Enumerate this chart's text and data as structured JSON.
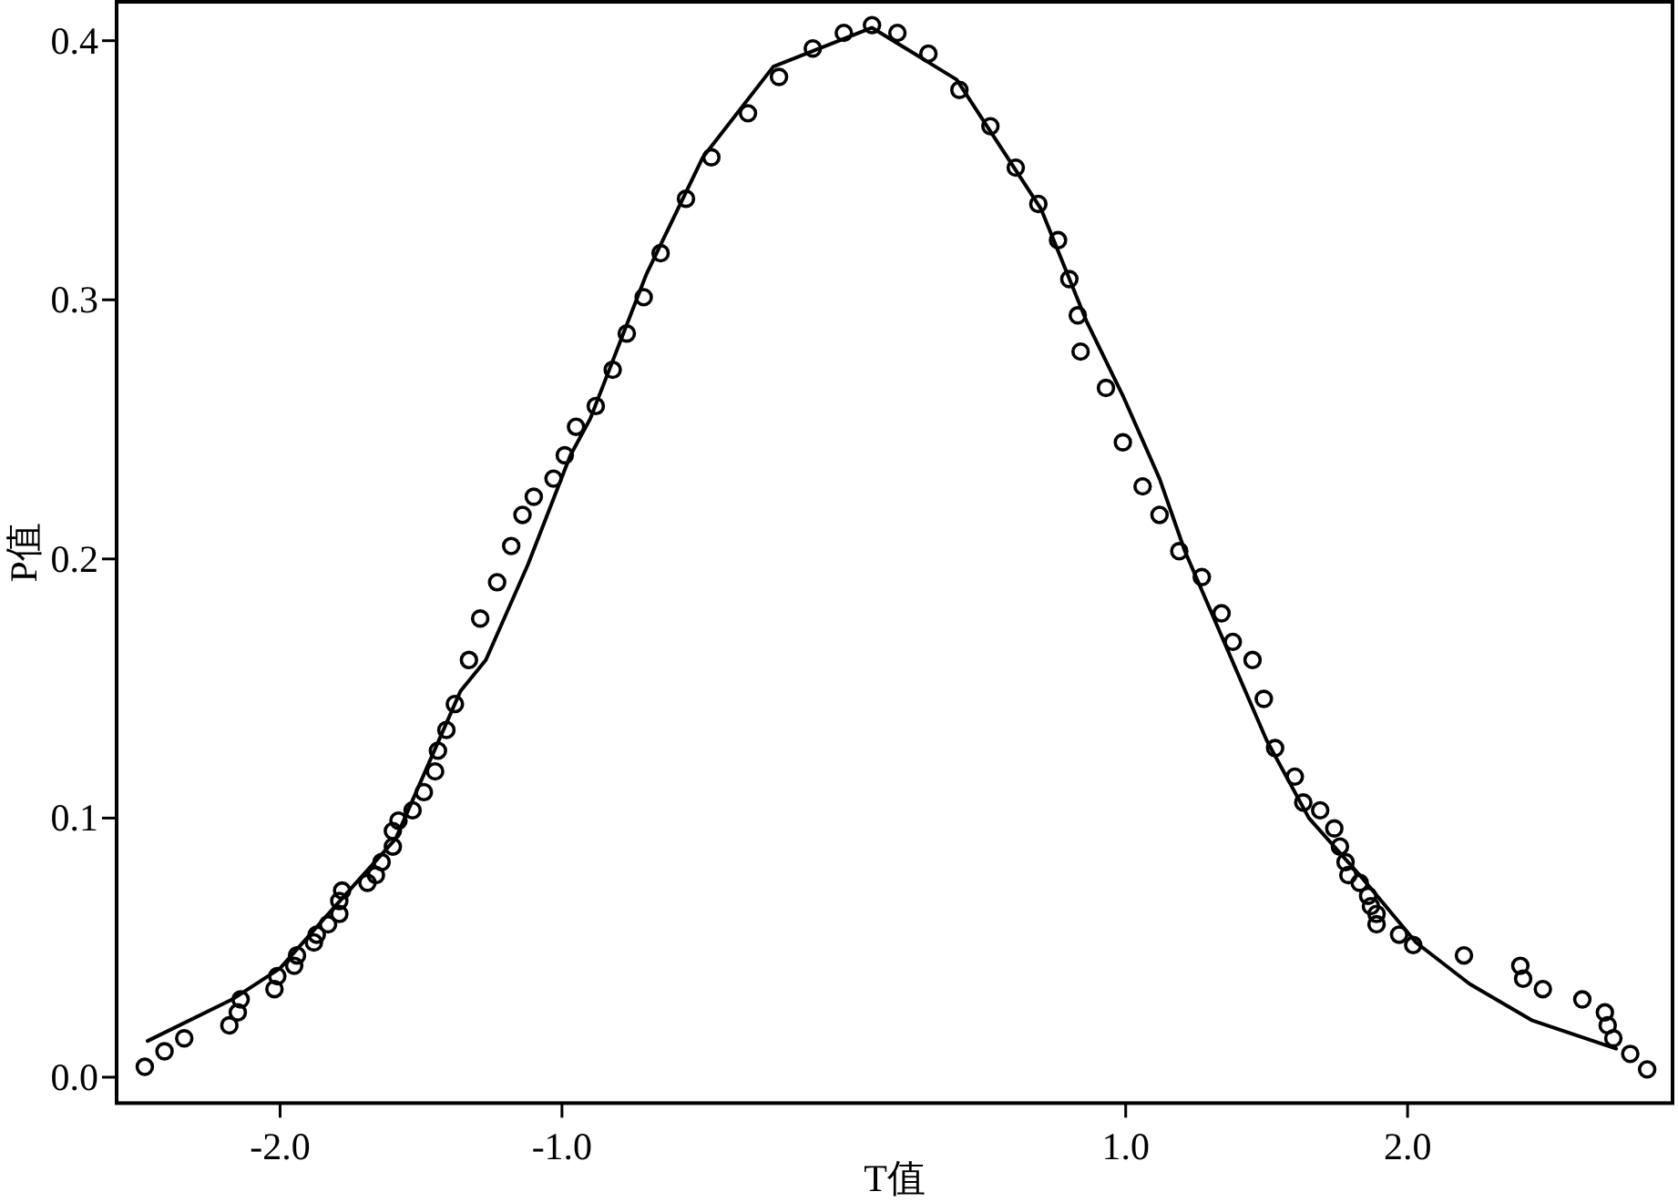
{
  "chart_data": {
    "type": "scatter",
    "xlabel": "T值",
    "ylabel": "P值",
    "xlim": [
      -2.58,
      2.94
    ],
    "ylim": [
      -0.01,
      0.415
    ],
    "xticks": [
      {
        "value": -2,
        "label": "-2.0"
      },
      {
        "value": -1,
        "label": "-1.0"
      },
      {
        "value": 1,
        "label": "1.0"
      },
      {
        "value": 2,
        "label": "2.0"
      }
    ],
    "yticks": [
      {
        "value": 0,
        "label": "0.0"
      },
      {
        "value": 0.1,
        "label": "0.1"
      },
      {
        "value": 0.2,
        "label": "0.2"
      },
      {
        "value": 0.3,
        "label": "0.3"
      },
      {
        "value": 0.4,
        "label": "0.4"
      }
    ],
    "grid": false,
    "marker": "circle",
    "series": [
      {
        "type": "scatter",
        "color": "#000000",
        "x": [
          -2.48,
          -2.41,
          -2.34,
          -2.18,
          -2.15,
          -2.14,
          -2.02,
          -2.01,
          -1.95,
          -1.94,
          -1.88,
          -1.87,
          -1.83,
          -1.79,
          -1.79,
          -1.78,
          -1.69,
          -1.66,
          -1.64,
          -1.6,
          -1.6,
          -1.58,
          -1.53,
          -1.49,
          -1.45,
          -1.44,
          -1.41,
          -1.38,
          -1.33,
          -1.29,
          -1.23,
          -1.18,
          -1.14,
          -1.1,
          -1.03,
          -0.99,
          -0.95,
          -0.88,
          -0.82,
          -0.77,
          -0.71,
          -0.65,
          -0.56,
          -0.47,
          -0.34,
          -0.23,
          -0.11,
          0.0,
          0.1,
          0.19,
          0.3,
          0.41,
          0.52,
          0.61,
          0.69,
          0.76,
          0.8,
          0.83,
          0.84,
          0.93,
          0.99,
          1.06,
          1.12,
          1.19,
          1.27,
          1.34,
          1.38,
          1.45,
          1.49,
          1.53,
          1.6,
          1.63,
          1.69,
          1.74,
          1.76,
          1.78,
          1.79,
          1.83,
          1.86,
          1.87,
          1.89,
          1.89,
          1.97,
          2.02,
          2.2,
          2.4,
          2.41,
          2.48,
          2.62,
          2.7,
          2.71,
          2.73,
          2.79,
          2.85
        ],
        "values": [
          0.004,
          0.01,
          0.015,
          0.02,
          0.025,
          0.03,
          0.034,
          0.039,
          0.043,
          0.047,
          0.052,
          0.055,
          0.059,
          0.063,
          0.068,
          0.072,
          0.075,
          0.078,
          0.083,
          0.089,
          0.095,
          0.099,
          0.103,
          0.11,
          0.118,
          0.126,
          0.134,
          0.144,
          0.161,
          0.177,
          0.191,
          0.205,
          0.217,
          0.224,
          0.231,
          0.24,
          0.251,
          0.259,
          0.273,
          0.287,
          0.301,
          0.318,
          0.339,
          0.355,
          0.372,
          0.386,
          0.397,
          0.403,
          0.406,
          0.403,
          0.395,
          0.381,
          0.367,
          0.351,
          0.337,
          0.323,
          0.308,
          0.294,
          0.28,
          0.266,
          0.245,
          0.228,
          0.217,
          0.203,
          0.193,
          0.179,
          0.168,
          0.161,
          0.146,
          0.127,
          0.116,
          0.106,
          0.103,
          0.096,
          0.089,
          0.083,
          0.078,
          0.075,
          0.07,
          0.066,
          0.063,
          0.059,
          0.055,
          0.051,
          0.047,
          0.043,
          0.038,
          0.034,
          0.03,
          0.025,
          0.02,
          0.015,
          0.009,
          0.003
        ]
      },
      {
        "type": "line",
        "color": "#000000",
        "marker": "none",
        "line_style": "solid",
        "x": [
          -2.47,
          -2.17,
          -2.0,
          -1.78,
          -1.59,
          -1.36,
          -1.27,
          -1.12,
          -0.97,
          -0.9,
          -0.7,
          -0.5,
          -0.25,
          0.1,
          0.4,
          0.7,
          0.86,
          0.99,
          1.12,
          1.21,
          1.5,
          1.65,
          1.83,
          2.03,
          2.22,
          2.44,
          2.74
        ],
        "values": [
          0.014,
          0.03,
          0.042,
          0.069,
          0.092,
          0.149,
          0.161,
          0.198,
          0.24,
          0.254,
          0.31,
          0.355,
          0.39,
          0.405,
          0.385,
          0.335,
          0.292,
          0.263,
          0.231,
          0.203,
          0.13,
          0.1,
          0.078,
          0.052,
          0.036,
          0.022,
          0.011
        ]
      }
    ]
  }
}
